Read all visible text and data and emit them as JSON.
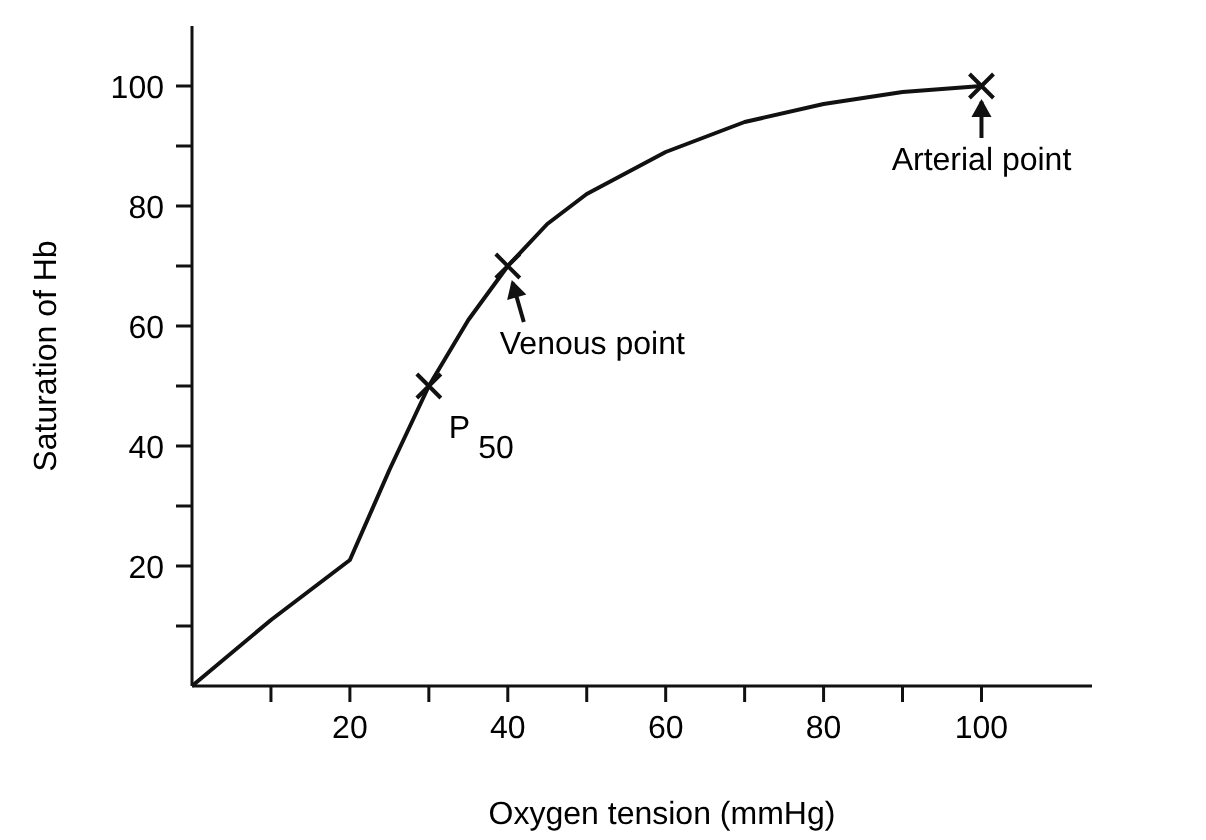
{
  "chart_data": {
    "type": "line",
    "xlabel": "Oxygen tension (mmHg)",
    "ylabel": "Saturation of Hb",
    "xlim": [
      0,
      114
    ],
    "ylim": [
      0,
      110
    ],
    "xticks": [
      {
        "value": 10,
        "label": null
      },
      20,
      {
        "value": 30,
        "label": null
      },
      40,
      {
        "value": 50,
        "label": null
      },
      60,
      {
        "value": 70,
        "label": null
      },
      80,
      {
        "value": 90,
        "label": null
      },
      100
    ],
    "yticks": [
      {
        "value": 10,
        "label": null
      },
      20,
      {
        "value": 30,
        "label": null
      },
      40,
      {
        "value": 50,
        "label": null
      },
      60,
      {
        "value": 70,
        "label": null
      },
      80,
      {
        "value": 90,
        "label": null
      },
      100
    ],
    "grid": false,
    "series": [
      {
        "color": "#111111",
        "marker": "none",
        "line_style": "solid",
        "x": [
          0,
          10,
          20,
          25,
          30,
          35,
          40,
          45,
          50,
          60,
          70,
          80,
          90,
          100
        ],
        "values": [
          0,
          11,
          21,
          36,
          50,
          61,
          70,
          77,
          82,
          89,
          94,
          97,
          99,
          100
        ]
      },
      {
        "type": "scatter",
        "color": "#111111",
        "marker": "cross",
        "x": [
          30,
          40,
          100
        ],
        "values": [
          50,
          70,
          100
        ]
      }
    ],
    "annotations": [
      {
        "text": "P$_{50}$",
        "x": 30,
        "y": 50
      },
      {
        "text": "Venous point",
        "x": 40,
        "y": 70
      },
      {
        "text": "Arterial point",
        "x": 100,
        "y": 100
      }
    ]
  }
}
